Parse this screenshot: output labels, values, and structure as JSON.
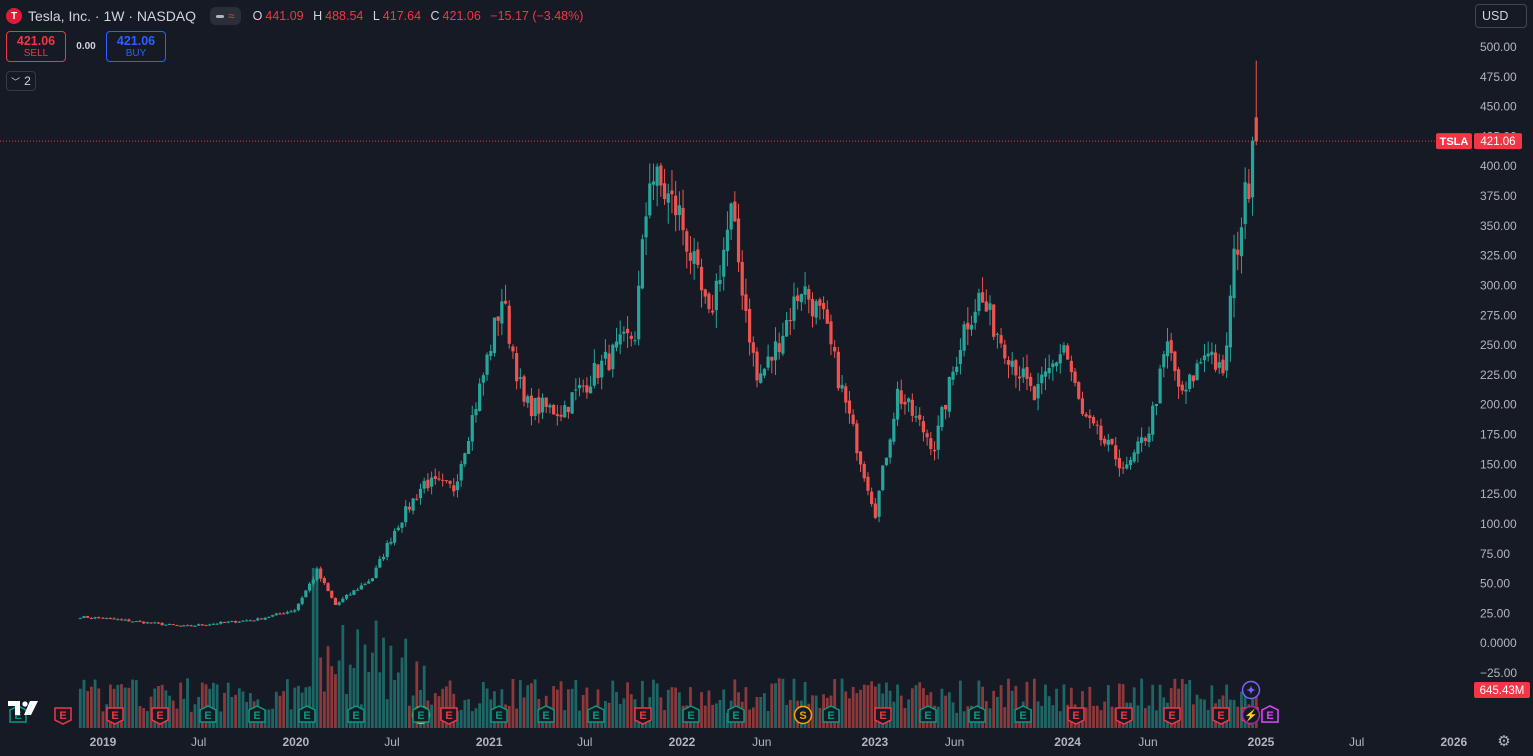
{
  "header": {
    "logo_letter": "T",
    "symbol_title": "Tesla, Inc. · 1W · NASDAQ",
    "ohlc": {
      "o_label": "O",
      "o_value": "441.09",
      "h_label": "H",
      "h_value": "488.54",
      "l_label": "L",
      "l_value": "417.64",
      "c_label": "C",
      "c_value": "421.06",
      "change": "−15.17 (−3.48%)"
    }
  },
  "trade": {
    "sell_price": "421.06",
    "sell_label": "SELL",
    "spread": "0.00",
    "buy_price": "421.06",
    "buy_label": "BUY"
  },
  "indicators_toggle": {
    "count": "2"
  },
  "currency": {
    "label": "USD"
  },
  "price_tag": {
    "symbol": "TSLA",
    "value": "421.06",
    "color": "#f23645"
  },
  "volume_tag": {
    "value": "645.43M"
  },
  "colors": {
    "up": "#26a69a",
    "down": "#ef5350",
    "background": "#161a25",
    "grid_text": "#b2b5be"
  },
  "events": [
    {
      "type": "E",
      "kind": "earnings",
      "color": "#089981",
      "down": false
    },
    {
      "type": "E",
      "kind": "earnings",
      "color": "#f23645",
      "down": true
    },
    {
      "type": "E",
      "kind": "earnings",
      "color": "#f23645",
      "down": true
    },
    {
      "type": "E",
      "kind": "earnings",
      "color": "#f23645",
      "down": true
    },
    {
      "type": "E",
      "kind": "earnings",
      "color": "#089981",
      "down": false
    },
    {
      "type": "E",
      "kind": "earnings",
      "color": "#089981",
      "down": false
    },
    {
      "type": "E",
      "kind": "earnings",
      "color": "#089981",
      "down": false
    },
    {
      "type": "E",
      "kind": "earnings",
      "color": "#089981",
      "down": false
    },
    {
      "type": "S",
      "kind": "split",
      "color": "#f7a600",
      "down": false
    },
    {
      "type": "E",
      "kind": "earnings",
      "color": "#089981",
      "down": false
    },
    {
      "type": "E",
      "kind": "earnings",
      "color": "#f23645",
      "down": true
    },
    {
      "type": "E",
      "kind": "earnings",
      "color": "#089981",
      "down": false
    },
    {
      "type": "E",
      "kind": "earnings",
      "color": "#089981",
      "down": false
    },
    {
      "type": "E",
      "kind": "earnings",
      "color": "#089981",
      "down": false
    },
    {
      "type": "E",
      "kind": "earnings",
      "color": "#f23645",
      "down": true
    },
    {
      "type": "E",
      "kind": "earnings",
      "color": "#089981",
      "down": false
    },
    {
      "type": "E",
      "kind": "earnings",
      "color": "#089981",
      "down": false
    },
    {
      "type": "S",
      "kind": "split",
      "color": "#f7a600",
      "down": false
    },
    {
      "type": "E",
      "kind": "earnings",
      "color": "#089981",
      "down": false
    },
    {
      "type": "E",
      "kind": "earnings",
      "color": "#f23645",
      "down": true
    },
    {
      "type": "E",
      "kind": "earnings",
      "color": "#089981",
      "down": false
    },
    {
      "type": "E",
      "kind": "earnings",
      "color": "#089981",
      "down": false
    },
    {
      "type": "E",
      "kind": "earnings",
      "color": "#089981",
      "down": false
    },
    {
      "type": "E",
      "kind": "earnings",
      "color": "#f23645",
      "down": true
    },
    {
      "type": "E",
      "kind": "earnings",
      "color": "#f23645",
      "down": true
    },
    {
      "type": "E",
      "kind": "earnings",
      "color": "#f23645",
      "down": true
    },
    {
      "type": "E",
      "kind": "earnings",
      "color": "#f23645",
      "down": true
    },
    {
      "type": "E",
      "kind": "earnings",
      "color": "#f23645",
      "down": true
    },
    {
      "type": "E",
      "kind": "earnings",
      "color": "#089981",
      "down": false
    },
    {
      "type": "⚡",
      "kind": "flash",
      "color": "#9c27b0",
      "down": false
    },
    {
      "type": "E",
      "kind": "earnings",
      "color": "#e040fb",
      "down": false
    },
    {
      "type": "✦",
      "kind": "star",
      "color": "#7b61ff",
      "down": false
    }
  ],
  "chart_data": {
    "type": "candlestick",
    "title": "",
    "series_name": "",
    "y_axis_ticks": [
      "500.00",
      "475.00",
      "450.00",
      "425.00",
      "400.00",
      "375.00",
      "350.00",
      "325.00",
      "300.00",
      "275.00",
      "250.00",
      "225.00",
      "200.00",
      "175.00",
      "150.00",
      "125.00",
      "100.00",
      "75.00",
      "50.00",
      "25.00",
      "0.0000",
      "−25.00"
    ],
    "x_axis_ticks": [
      "2019",
      "Jul",
      "2020",
      "Jul",
      "2021",
      "Jul",
      "2022",
      "Jun",
      "2023",
      "Jun",
      "2024",
      "Jun",
      "2025",
      "Jul",
      "2026"
    ],
    "ylim": [
      -30,
      510
    ],
    "last_price": 421.06,
    "grid": false,
    "weekly_close_anchors": [
      [
        "2018-11-19",
        22
      ],
      [
        "2019-01-01",
        21
      ],
      [
        "2019-06-03",
        14
      ],
      [
        "2019-10-21",
        20
      ],
      [
        "2019-12-30",
        28
      ],
      [
        "2020-02-10",
        60
      ],
      [
        "2020-03-16",
        32
      ],
      [
        "2020-05-25",
        55
      ],
      [
        "2020-07-06",
        95
      ],
      [
        "2020-08-31",
        135
      ],
      [
        "2020-10-26",
        130
      ],
      [
        "2020-12-21",
        225
      ],
      [
        "2021-01-25",
        290
      ],
      [
        "2021-03-08",
        200
      ],
      [
        "2021-05-17",
        195
      ],
      [
        "2021-07-26",
        230
      ],
      [
        "2021-10-04",
        260
      ],
      [
        "2021-11-01",
        395
      ],
      [
        "2021-12-27",
        360
      ],
      [
        "2022-02-21",
        270
      ],
      [
        "2022-04-04",
        360
      ],
      [
        "2022-05-23",
        220
      ],
      [
        "2022-06-20",
        240
      ],
      [
        "2022-08-15",
        300
      ],
      [
        "2022-09-26",
        270
      ],
      [
        "2022-11-07",
        200
      ],
      [
        "2023-01-02",
        110
      ],
      [
        "2023-02-13",
        210
      ],
      [
        "2023-04-24",
        165
      ],
      [
        "2023-06-19",
        265
      ],
      [
        "2023-07-17",
        290
      ],
      [
        "2023-09-04",
        250
      ],
      [
        "2023-10-30",
        205
      ],
      [
        "2023-12-25",
        250
      ],
      [
        "2024-01-29",
        190
      ],
      [
        "2024-04-22",
        145
      ],
      [
        "2024-06-03",
        180
      ],
      [
        "2024-07-08",
        250
      ],
      [
        "2024-08-05",
        205
      ],
      [
        "2024-09-23",
        250
      ],
      [
        "2024-10-21",
        220
      ],
      [
        "2024-11-11",
        320
      ],
      [
        "2024-12-09",
        390
      ],
      [
        "2024-12-16",
        436
      ],
      [
        "2024-12-23",
        421.06
      ]
    ],
    "last_candle": {
      "open": 441.09,
      "high": 488.54,
      "low": 417.64,
      "close": 421.06
    },
    "last_volume": "645.43M"
  }
}
